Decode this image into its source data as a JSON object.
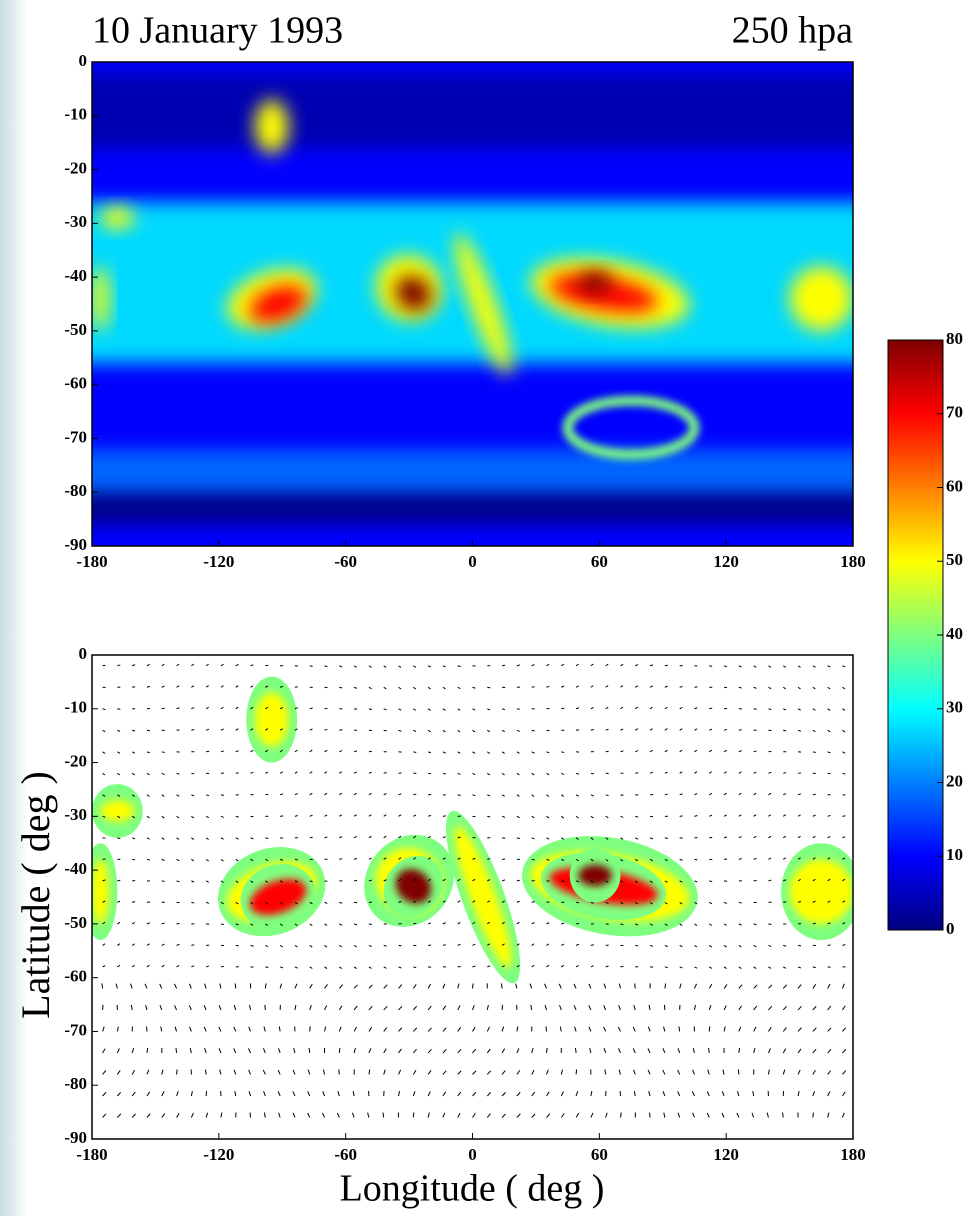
{
  "chart_data": [
    {
      "type": "heatmap",
      "title": "10  January  1993",
      "subtitle": "250 hpa",
      "xlim": [
        -180,
        180
      ],
      "ylim": [
        -90,
        0
      ],
      "xticks": [
        -180,
        -120,
        -60,
        0,
        60,
        120,
        180
      ],
      "yticks": [
        0,
        -10,
        -20,
        -30,
        -40,
        -50,
        -60,
        -70,
        -80,
        -90
      ],
      "colorbar": {
        "lim": [
          0,
          80
        ],
        "ticks": [
          0,
          10,
          20,
          30,
          40,
          50,
          60,
          70,
          80
        ],
        "colors": [
          "#00007f",
          "#0000ff",
          "#007fff",
          "#00ffff",
          "#7fff7f",
          "#ffff00",
          "#ff7f00",
          "#ff0000",
          "#7f0000"
        ]
      }
    },
    {
      "type": "vector",
      "xlabel": "Longitude ( deg )",
      "ylabel": "Latitude ( deg )",
      "xlim": [
        -180,
        180
      ],
      "ylim": [
        -90,
        0
      ],
      "xticks": [
        -180,
        -120,
        -60,
        0,
        60,
        120,
        180
      ],
      "yticks": [
        0,
        -10,
        -20,
        -30,
        -40,
        -50,
        -60,
        -70,
        -80,
        -90
      ]
    }
  ]
}
